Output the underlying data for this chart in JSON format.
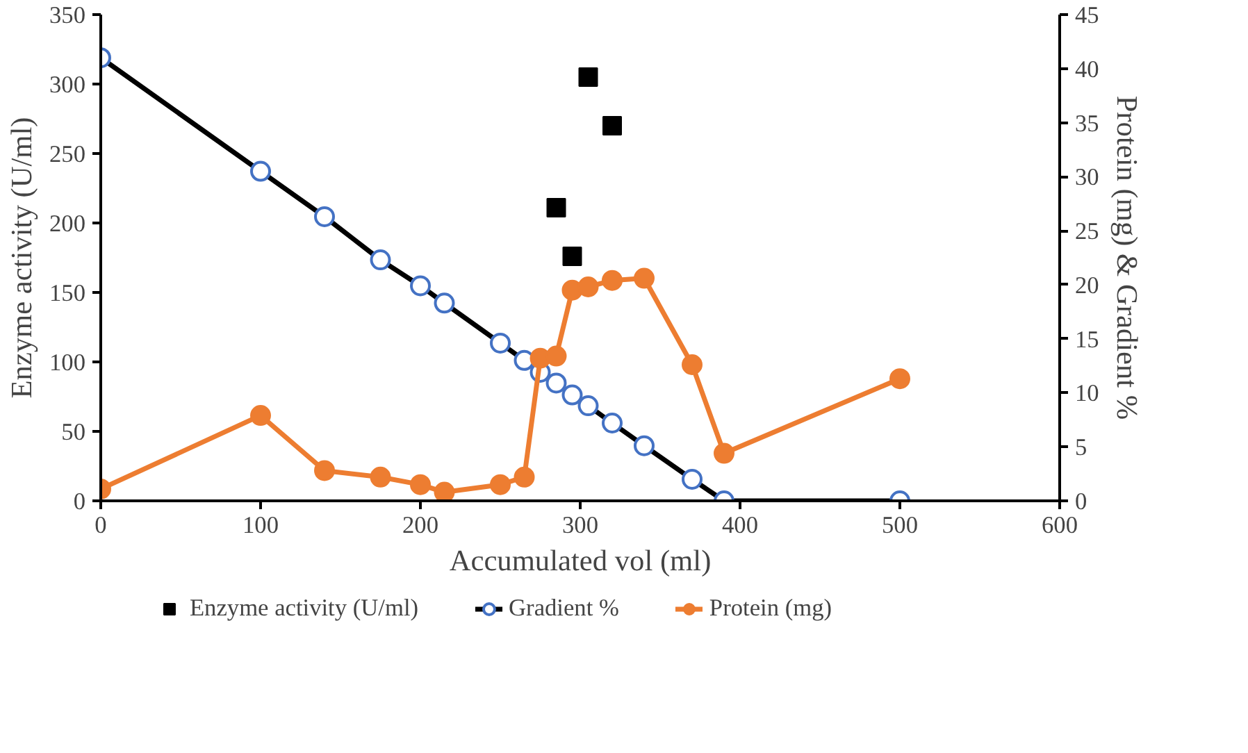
{
  "chart_data": {
    "type": "line",
    "xlabel": "Accumulated vol (ml)",
    "ylabel": "Enzyme activity (U/ml)",
    "y2label": "Protein (mg) & Gradient %",
    "xlim": [
      0,
      600
    ],
    "xticks": [
      0,
      100,
      200,
      300,
      400,
      500,
      600
    ],
    "ylim": [
      0,
      350
    ],
    "yticks": [
      0,
      50,
      100,
      150,
      200,
      250,
      300,
      350
    ],
    "y2lim": [
      0,
      45
    ],
    "y2ticks": [
      0,
      5,
      10,
      15,
      20,
      25,
      30,
      35,
      40,
      45
    ],
    "legend": "bottom",
    "grid": false,
    "series": [
      {
        "name": "Enzyme activity (U/ml)",
        "type": "scatter",
        "marker": "square",
        "color": "#000000",
        "x": [
          285,
          295,
          305,
          320
        ],
        "values": [
          211,
          176,
          305,
          270
        ]
      },
      {
        "name": "Gradient %",
        "marker": "circle",
        "axis": "y2",
        "color": "#000000",
        "x": [
          0,
          100,
          140,
          175,
          200,
          215,
          250,
          265,
          275,
          285,
          295,
          305,
          320,
          340,
          370,
          390,
          500
        ],
        "values": [
          41,
          30.5,
          26.3,
          22.3,
          19.9,
          18.3,
          14.6,
          13,
          11.9,
          10.9,
          9.8,
          8.8,
          7.2,
          5.1,
          2,
          0,
          0
        ]
      },
      {
        "name": "Protein (mg)",
        "marker": "circle",
        "axis": "y2",
        "color": "#ed7d31",
        "x": [
          0,
          100,
          140,
          175,
          200,
          215,
          250,
          265,
          275,
          285,
          295,
          305,
          320,
          340,
          370,
          390,
          500
        ],
        "values": [
          1.1,
          7.9,
          2.8,
          2.2,
          1.5,
          0.8,
          1.5,
          2.2,
          13.2,
          13.4,
          19.5,
          19.8,
          20.4,
          20.6,
          12.6,
          4.4,
          11.3
        ]
      }
    ]
  }
}
